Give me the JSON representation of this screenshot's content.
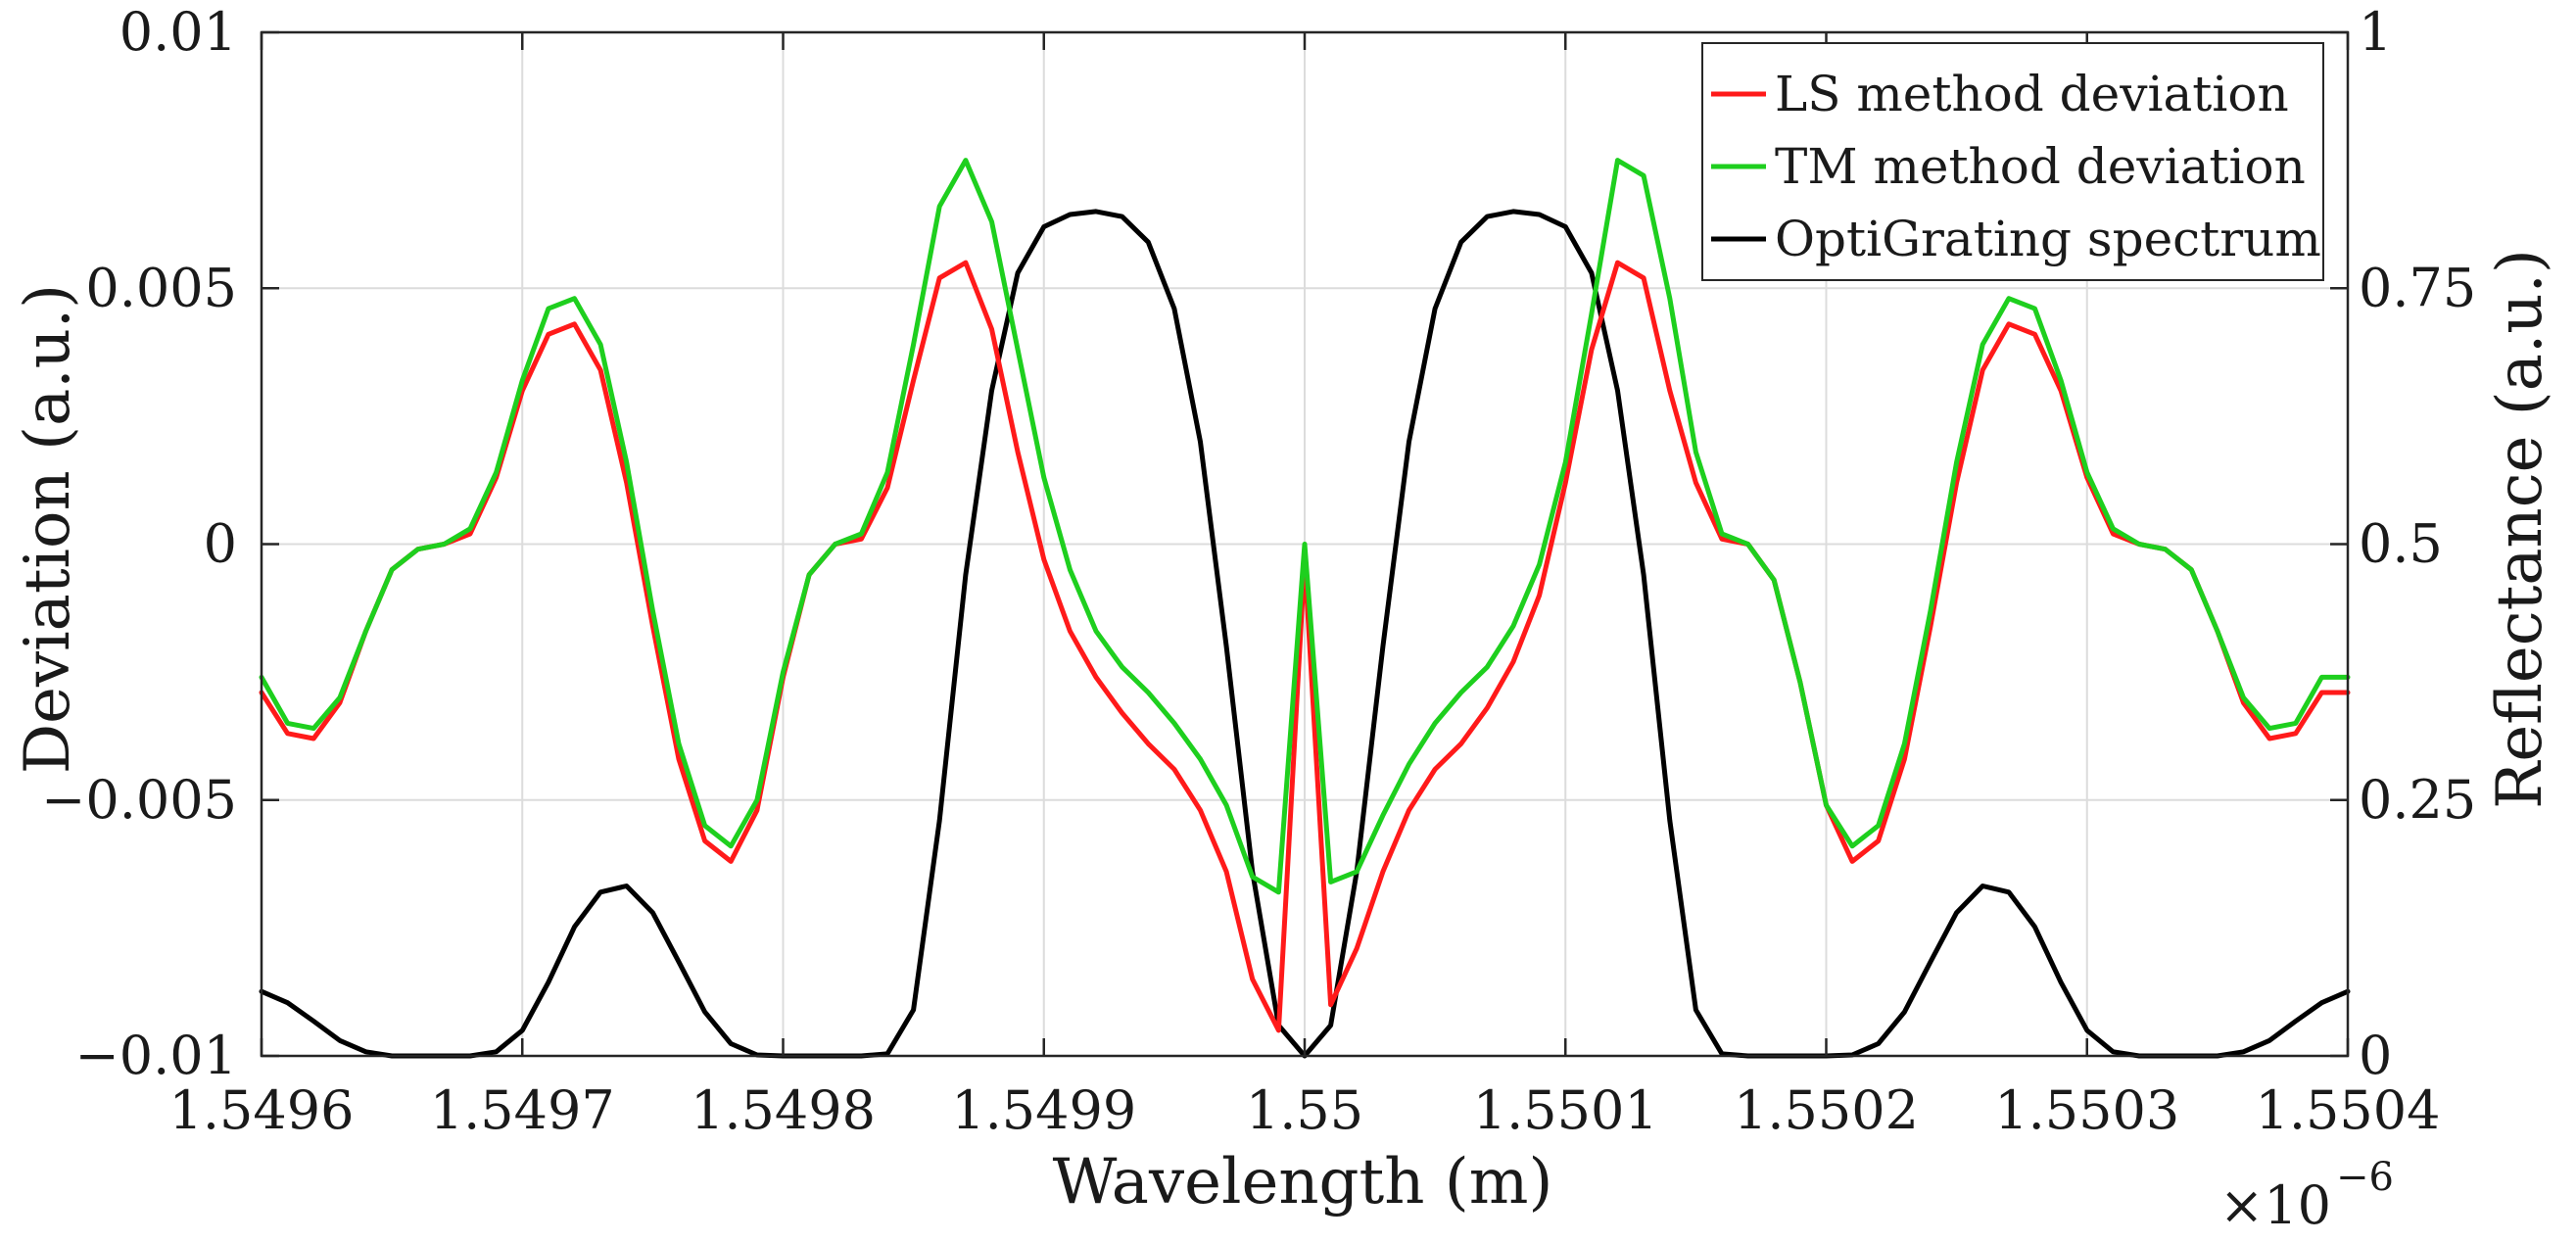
{
  "chart_data": {
    "type": "line",
    "xlabel": "Wavelength (m)",
    "x_exponent_base": "×10",
    "x_exponent_power": "−6",
    "xlim": [
      1.5496,
      1.5504
    ],
    "x_ticks": [
      1.5496,
      1.5497,
      1.5498,
      1.5499,
      1.55,
      1.5501,
      1.5502,
      1.5503,
      1.5504
    ],
    "x_tick_labels": [
      "1.5496",
      "1.5497",
      "1.5498",
      "1.5499",
      "1.55",
      "1.5501",
      "1.5502",
      "1.5503",
      "1.5504"
    ],
    "y_left": {
      "label": "Deviation (a.u.)",
      "lim": [
        -0.01,
        0.01
      ],
      "ticks": [
        -0.01,
        -0.005,
        0,
        0.005,
        0.01
      ],
      "tick_labels": [
        "−0.01",
        "−0.005",
        "0",
        "0.005",
        "0.01"
      ]
    },
    "y_right": {
      "label": "Reflectance (a.u.)",
      "lim": [
        0,
        1
      ],
      "ticks": [
        0,
        0.25,
        0.5,
        0.75,
        1
      ],
      "tick_labels": [
        "0",
        "0.25",
        "0.5",
        "0.75",
        "1"
      ]
    },
    "grid": true,
    "legend_position": "top-right",
    "series": [
      {
        "name": "LS method deviation",
        "axis": "left",
        "color": "#ff1a1a",
        "x": [
          1.5496,
          1.54961,
          1.54962,
          1.54963,
          1.54964,
          1.54965,
          1.54966,
          1.54967,
          1.54968,
          1.54969,
          1.5497,
          1.54971,
          1.54972,
          1.54973,
          1.54974,
          1.54975,
          1.54976,
          1.54977,
          1.54978,
          1.54979,
          1.5498,
          1.54981,
          1.54982,
          1.54983,
          1.54984,
          1.54985,
          1.54986,
          1.54987,
          1.54988,
          1.54989,
          1.5499,
          1.54991,
          1.54992,
          1.54993,
          1.54994,
          1.54995,
          1.54996,
          1.54997,
          1.54998,
          1.54999,
          1.55,
          1.55001,
          1.55002,
          1.55003,
          1.55004,
          1.55005,
          1.55006,
          1.55007,
          1.55008,
          1.55009,
          1.5501,
          1.55011,
          1.55012,
          1.55013,
          1.55014,
          1.55015,
          1.55016,
          1.55017,
          1.55018,
          1.55019,
          1.5502,
          1.55021,
          1.55022,
          1.55023,
          1.55024,
          1.55025,
          1.55026,
          1.55027,
          1.55028,
          1.55029,
          1.5503,
          1.55031,
          1.55032,
          1.55033,
          1.55034,
          1.55035,
          1.55036,
          1.55037,
          1.55038,
          1.55039,
          1.5504
        ],
        "y": [
          -0.0029,
          -0.0037,
          -0.0038,
          -0.0031,
          -0.0017,
          -0.0005,
          -0.0001,
          0.0,
          0.0002,
          0.0013,
          0.003,
          0.0041,
          0.0043,
          0.0034,
          0.0012,
          -0.0016,
          -0.0042,
          -0.0058,
          -0.0062,
          -0.0052,
          -0.0026,
          -0.0006,
          0.0,
          0.0001,
          0.0011,
          0.0032,
          0.0052,
          0.0055,
          0.0042,
          0.0018,
          -0.0003,
          -0.0017,
          -0.0026,
          -0.0033,
          -0.0039,
          -0.0044,
          -0.0052,
          -0.0064,
          -0.0085,
          -0.0095,
          -0.0003,
          -0.009,
          -0.0079,
          -0.0064,
          -0.0052,
          -0.0044,
          -0.0039,
          -0.0032,
          -0.0023,
          -0.001,
          0.0012,
          0.0038,
          0.0055,
          0.0052,
          0.003,
          0.0012,
          0.0001,
          0.0,
          -0.0007,
          -0.0027,
          -0.0051,
          -0.0062,
          -0.0058,
          -0.0042,
          -0.0016,
          0.0012,
          0.0034,
          0.0043,
          0.0041,
          0.003,
          0.0013,
          0.0002,
          0.0,
          -0.0001,
          -0.0005,
          -0.0017,
          -0.0031,
          -0.0038,
          -0.0037,
          -0.0029,
          -0.0029
        ]
      },
      {
        "name": "TM method deviation",
        "axis": "left",
        "color": "#1ecf1e",
        "x": [
          1.5496,
          1.54961,
          1.54962,
          1.54963,
          1.54964,
          1.54965,
          1.54966,
          1.54967,
          1.54968,
          1.54969,
          1.5497,
          1.54971,
          1.54972,
          1.54973,
          1.54974,
          1.54975,
          1.54976,
          1.54977,
          1.54978,
          1.54979,
          1.5498,
          1.54981,
          1.54982,
          1.54983,
          1.54984,
          1.54985,
          1.54986,
          1.54987,
          1.54988,
          1.54989,
          1.5499,
          1.54991,
          1.54992,
          1.54993,
          1.54994,
          1.54995,
          1.54996,
          1.54997,
          1.54998,
          1.54999,
          1.55,
          1.55001,
          1.55002,
          1.55003,
          1.55004,
          1.55005,
          1.55006,
          1.55007,
          1.55008,
          1.55009,
          1.5501,
          1.55011,
          1.55012,
          1.55013,
          1.55014,
          1.55015,
          1.55016,
          1.55017,
          1.55018,
          1.55019,
          1.5502,
          1.55021,
          1.55022,
          1.55023,
          1.55024,
          1.55025,
          1.55026,
          1.55027,
          1.55028,
          1.55029,
          1.5503,
          1.55031,
          1.55032,
          1.55033,
          1.55034,
          1.55035,
          1.55036,
          1.55037,
          1.55038,
          1.55039,
          1.5504
        ],
        "y": [
          -0.0026,
          -0.0035,
          -0.0036,
          -0.003,
          -0.0017,
          -0.0005,
          -0.0001,
          0.0,
          0.0003,
          0.0014,
          0.0032,
          0.0046,
          0.0048,
          0.0039,
          0.0016,
          -0.0013,
          -0.0039,
          -0.0055,
          -0.0059,
          -0.005,
          -0.0025,
          -0.0006,
          0.0,
          0.0002,
          0.0014,
          0.0039,
          0.0066,
          0.0075,
          0.0063,
          0.0038,
          0.0013,
          -0.0005,
          -0.0017,
          -0.0024,
          -0.0029,
          -0.0035,
          -0.0042,
          -0.0051,
          -0.0065,
          -0.0068,
          0.0,
          -0.0066,
          -0.0064,
          -0.0053,
          -0.0043,
          -0.0035,
          -0.0029,
          -0.0024,
          -0.0016,
          -0.0004,
          0.0016,
          0.0045,
          0.0075,
          0.0072,
          0.0048,
          0.0018,
          0.0002,
          0.0,
          -0.0007,
          -0.0027,
          -0.0051,
          -0.0059,
          -0.0055,
          -0.0039,
          -0.0013,
          0.0016,
          0.0039,
          0.0048,
          0.0046,
          0.0032,
          0.0014,
          0.0003,
          0.0,
          -0.0001,
          -0.0005,
          -0.0017,
          -0.003,
          -0.0036,
          -0.0035,
          -0.0026,
          -0.0026
        ]
      },
      {
        "name": "OptiGrating spectrum",
        "axis": "right",
        "color": "#000000",
        "x": [
          1.5496,
          1.54961,
          1.54962,
          1.54963,
          1.54964,
          1.54965,
          1.54966,
          1.54967,
          1.54968,
          1.54969,
          1.5497,
          1.54971,
          1.54972,
          1.54973,
          1.54974,
          1.54975,
          1.54976,
          1.54977,
          1.54978,
          1.54979,
          1.5498,
          1.54981,
          1.54982,
          1.54983,
          1.54984,
          1.54985,
          1.54986,
          1.54987,
          1.54988,
          1.54989,
          1.5499,
          1.54991,
          1.54992,
          1.54993,
          1.54994,
          1.54995,
          1.54996,
          1.54997,
          1.54998,
          1.54999,
          1.55,
          1.55001,
          1.55002,
          1.55003,
          1.55004,
          1.55005,
          1.55006,
          1.55007,
          1.55008,
          1.55009,
          1.5501,
          1.55011,
          1.55012,
          1.55013,
          1.55014,
          1.55015,
          1.55016,
          1.55017,
          1.55018,
          1.55019,
          1.5502,
          1.55021,
          1.55022,
          1.55023,
          1.55024,
          1.55025,
          1.55026,
          1.55027,
          1.55028,
          1.55029,
          1.5503,
          1.55031,
          1.55032,
          1.55033,
          1.55034,
          1.55035,
          1.55036,
          1.55037,
          1.55038,
          1.55039,
          1.5504
        ],
        "y": [
          0.063,
          0.052,
          0.034,
          0.015,
          0.004,
          0.0,
          0.0,
          0.0,
          0.0,
          0.004,
          0.025,
          0.072,
          0.126,
          0.16,
          0.166,
          0.14,
          0.092,
          0.043,
          0.012,
          0.001,
          0.0,
          0.0,
          0.0,
          0.0,
          0.002,
          0.045,
          0.23,
          0.47,
          0.65,
          0.765,
          0.81,
          0.822,
          0.825,
          0.82,
          0.795,
          0.73,
          0.6,
          0.4,
          0.18,
          0.03,
          0.0,
          0.03,
          0.18,
          0.4,
          0.6,
          0.73,
          0.795,
          0.82,
          0.825,
          0.822,
          0.81,
          0.765,
          0.65,
          0.47,
          0.23,
          0.045,
          0.002,
          0.0,
          0.0,
          0.0,
          0.0,
          0.001,
          0.012,
          0.043,
          0.092,
          0.14,
          0.166,
          0.16,
          0.126,
          0.072,
          0.025,
          0.004,
          0.0,
          0.0,
          0.0,
          0.0,
          0.004,
          0.015,
          0.034,
          0.052,
          0.063
        ]
      }
    ]
  }
}
